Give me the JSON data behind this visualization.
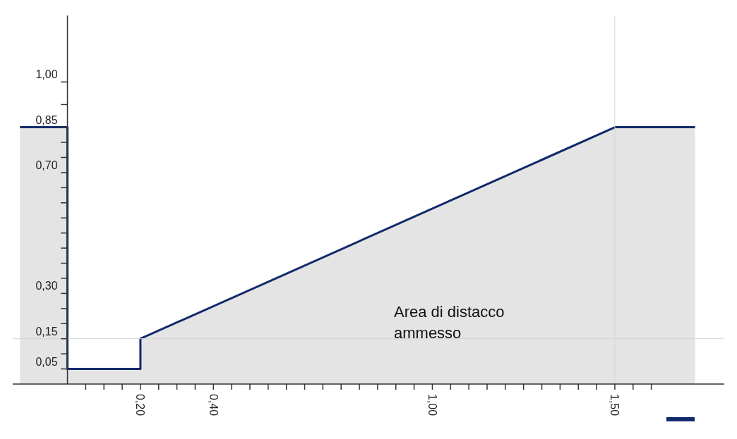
{
  "chart_data": {
    "type": "area",
    "x": [
      -0.13,
      0,
      0,
      0.2,
      0.2,
      1.5,
      1.72
    ],
    "series": [
      {
        "color": "#112a6b",
        "values": [
          0.85,
          0.85,
          0.05,
          0.05,
          0.15,
          0.85,
          0.85
        ]
      }
    ],
    "xlim": [
      -0.15,
      1.8
    ],
    "xticks": [
      {
        "value": 0.05,
        "label": null
      },
      {
        "value": 0.1,
        "label": null
      },
      {
        "value": 0.15,
        "label": null
      },
      {
        "value": 0.2,
        "label": "0,20"
      },
      {
        "value": 0.25,
        "label": null
      },
      {
        "value": 0.3,
        "label": null
      },
      {
        "value": 0.35,
        "label": null
      },
      {
        "value": 0.4,
        "label": "0,40"
      },
      {
        "value": 0.45,
        "label": null
      },
      {
        "value": 0.5,
        "label": null
      },
      {
        "value": 0.55,
        "label": null
      },
      {
        "value": 0.6,
        "label": null
      },
      {
        "value": 0.65,
        "label": null
      },
      {
        "value": 0.7,
        "label": null
      },
      {
        "value": 0.75,
        "label": null
      },
      {
        "value": 0.8,
        "label": null
      },
      {
        "value": 0.85,
        "label": null
      },
      {
        "value": 0.9,
        "label": null
      },
      {
        "value": 0.95,
        "label": null
      },
      {
        "value": 1.0,
        "label": "1,00"
      },
      {
        "value": 1.05,
        "label": null
      },
      {
        "value": 1.1,
        "label": null
      },
      {
        "value": 1.15,
        "label": null
      },
      {
        "value": 1.2,
        "label": null
      },
      {
        "value": 1.25,
        "label": null
      },
      {
        "value": 1.3,
        "label": null
      },
      {
        "value": 1.35,
        "label": null
      },
      {
        "value": 1.4,
        "label": null
      },
      {
        "value": 1.45,
        "label": null
      },
      {
        "value": 1.5,
        "label": "1,50"
      },
      {
        "value": 1.55,
        "label": null
      },
      {
        "value": 1.6,
        "label": null
      }
    ],
    "ylim": [
      0,
      1.22
    ],
    "yticks": [
      {
        "value": 0.05,
        "label": "0,05"
      },
      {
        "value": 0.1,
        "label": null
      },
      {
        "value": 0.15,
        "label": "0,15"
      },
      {
        "value": 0.2,
        "label": null
      },
      {
        "value": 0.25,
        "label": null
      },
      {
        "value": 0.3,
        "label": "0,30"
      },
      {
        "value": 0.35,
        "label": null
      },
      {
        "value": 0.4,
        "label": null
      },
      {
        "value": 0.45,
        "label": null
      },
      {
        "value": 0.5,
        "label": null
      },
      {
        "value": 0.55,
        "label": null
      },
      {
        "value": 0.6,
        "label": null
      },
      {
        "value": 0.65,
        "label": null
      },
      {
        "value": 0.7,
        "label": "0,70"
      },
      {
        "value": 0.75,
        "label": null
      },
      {
        "value": 0.8,
        "label": null
      },
      {
        "value": 0.85,
        "label": "0,85"
      },
      {
        "value": 0.925,
        "label": null
      },
      {
        "value": 1.0,
        "label": "1,00"
      }
    ],
    "ref_lines": [
      {
        "axis": "x",
        "value": 1.5,
        "color": "#d4d4d4"
      },
      {
        "axis": "y",
        "value": 0.15,
        "color": "#d4d4d4"
      }
    ],
    "annotations": [
      "Area di distacco ammesso"
    ],
    "grid": false
  }
}
